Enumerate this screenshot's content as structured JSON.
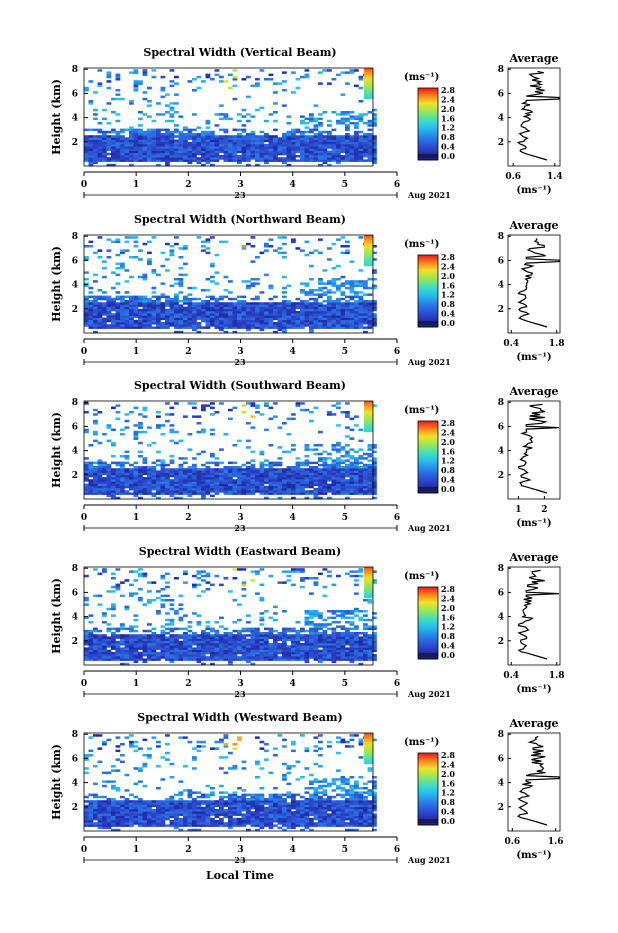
{
  "chart_data": [
    {
      "type": "heatmap",
      "title": "Spectral Width (Vertical Beam)",
      "ylabel": "Height (km)",
      "x_ticks": [
        "0",
        "1",
        "2",
        "3",
        "4",
        "5",
        "6"
      ],
      "xlim": [
        0,
        5.6
      ],
      "y_ticks": [
        "2",
        "4",
        "6",
        "8"
      ],
      "ylim": [
        0,
        8.1
      ],
      "colorbar": {
        "unit": "(ms⁻¹)",
        "ticks": [
          "0.0",
          "0.4",
          "0.8",
          "1.2",
          "1.6",
          "2.0",
          "2.4",
          "2.8"
        ]
      },
      "day_label": "23",
      "date_label": "Aug 2021",
      "colors": {
        "low": "#2e3fb0",
        "mid": "#35a7e0",
        "high": "#ff3b1f"
      },
      "average_panel": {
        "title": "Average",
        "x_ticks": [
          "0.6",
          "1.4"
        ],
        "xlim": [
          0.5,
          1.5
        ],
        "y_ticks": [
          "2",
          "4",
          "6",
          "8"
        ],
        "unit": "(ms⁻¹)",
        "spike_height": 5.6
      }
    },
    {
      "type": "heatmap",
      "title": "Spectral Width (Northward Beam)",
      "ylabel": "Height (km)",
      "x_ticks": [
        "0",
        "1",
        "2",
        "3",
        "4",
        "5",
        "6"
      ],
      "xlim": [
        0,
        5.6
      ],
      "y_ticks": [
        "2",
        "4",
        "6",
        "8"
      ],
      "ylim": [
        0,
        8.1
      ],
      "colorbar": {
        "unit": "(ms⁻¹)",
        "ticks": [
          "0.0",
          "0.4",
          "0.8",
          "1.2",
          "1.6",
          "2.0",
          "2.4",
          "2.8"
        ]
      },
      "day_label": "23",
      "date_label": "Aug 2021",
      "colors": {
        "low": "#2e3fb0",
        "mid": "#35a7e0",
        "high": "#ff3b1f"
      },
      "average_panel": {
        "title": "Average",
        "x_ticks": [
          "0.4",
          "1.8"
        ],
        "xlim": [
          0.3,
          1.9
        ],
        "y_ticks": [
          "2",
          "4",
          "6",
          "8"
        ],
        "unit": "(ms⁻¹)",
        "spike_height": 6.0
      }
    },
    {
      "type": "heatmap",
      "title": "Spectral Width (Southward Beam)",
      "ylabel": "Height (km)",
      "x_ticks": [
        "0",
        "1",
        "2",
        "3",
        "4",
        "5",
        "6"
      ],
      "xlim": [
        0,
        5.6
      ],
      "y_ticks": [
        "2",
        "4",
        "6",
        "8"
      ],
      "ylim": [
        0,
        8.1
      ],
      "colorbar": {
        "unit": "(ms⁻¹)",
        "ticks": [
          "0.0",
          "0.4",
          "0.8",
          "1.2",
          "1.6",
          "2.0",
          "2.4",
          "2.8"
        ]
      },
      "day_label": "23",
      "date_label": "Aug 2021",
      "colors": {
        "low": "#2e3fb0",
        "mid": "#35a7e0",
        "high": "#ff3b1f"
      },
      "average_panel": {
        "title": "Average",
        "x_ticks": [
          "1",
          "2"
        ],
        "xlim": [
          0.6,
          2.6
        ],
        "y_ticks": [
          "2",
          "4",
          "6",
          "8"
        ],
        "unit": "(ms⁻¹)",
        "spike_height": 5.9
      }
    },
    {
      "type": "heatmap",
      "title": "Spectral Width (Eastward Beam)",
      "ylabel": "Height (km)",
      "x_ticks": [
        "0",
        "1",
        "2",
        "3",
        "4",
        "5",
        "6"
      ],
      "xlim": [
        0,
        5.6
      ],
      "y_ticks": [
        "2",
        "4",
        "6",
        "8"
      ],
      "ylim": [
        0,
        8.1
      ],
      "colorbar": {
        "unit": "(ms⁻¹)",
        "ticks": [
          "0.0",
          "0.4",
          "0.8",
          "1.2",
          "1.6",
          "2.0",
          "2.4",
          "2.8"
        ]
      },
      "day_label": "23",
      "date_label": "Aug 2021",
      "colors": {
        "low": "#2e3fb0",
        "mid": "#35a7e0",
        "high": "#ff3b1f"
      },
      "average_panel": {
        "title": "Average",
        "x_ticks": [
          "0.4",
          "1.8"
        ],
        "xlim": [
          0.3,
          1.9
        ],
        "y_ticks": [
          "2",
          "4",
          "6",
          "8"
        ],
        "unit": "(ms⁻¹)",
        "spike_height": 5.9
      }
    },
    {
      "type": "heatmap",
      "title": "Spectral Width (Westward Beam)",
      "ylabel": "Height (km)",
      "x_ticks": [
        "0",
        "1",
        "2",
        "3",
        "4",
        "5",
        "6"
      ],
      "xlim": [
        0,
        5.6
      ],
      "y_ticks": [
        "2",
        "4",
        "6",
        "8"
      ],
      "ylim": [
        0,
        8.1
      ],
      "colorbar": {
        "unit": "(ms⁻¹)",
        "ticks": [
          "0.0",
          "0.4",
          "0.8",
          "1.2",
          "1.6",
          "2.0",
          "2.4",
          "2.8"
        ]
      },
      "day_label": "23",
      "date_label": "Aug 2021",
      "colors": {
        "low": "#2e3fb0",
        "mid": "#35a7e0",
        "high": "#ff3b1f"
      },
      "average_panel": {
        "title": "Average",
        "x_ticks": [
          "0.6",
          "1.6"
        ],
        "xlim": [
          0.5,
          1.7
        ],
        "y_ticks": [
          "2",
          "4",
          "6",
          "8"
        ],
        "unit": "(ms⁻¹)",
        "spike_height": 4.4
      }
    }
  ],
  "xlabel": "Local Time"
}
